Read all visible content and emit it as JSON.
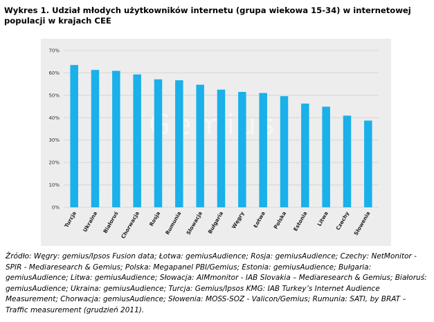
{
  "header": {
    "title": "Wykres 1. Udział młodych użytkowników internetu (grupa wiekowa 15-34) w internetowej populacji w krajach CEE"
  },
  "watermark": {
    "text": "Gemius"
  },
  "colors": {
    "bar": "#1ab0ea",
    "panel": "#ededed",
    "grid": "#d6d6d6"
  },
  "chart_data": {
    "type": "bar",
    "title": "Wykres 1. Udział młodych użytkowników internetu (grupa wiekowa 15-34) w internetowej populacji w krajach CEE",
    "xlabel": "",
    "ylabel": "",
    "ylim": [
      0,
      70
    ],
    "yticks": [
      "0%",
      "10%",
      "20%",
      "30%",
      "40%",
      "50%",
      "60%",
      "70%"
    ],
    "grid": true,
    "categories": [
      "Turcja",
      "Ukraina",
      "Białoruś",
      "Chorwacja",
      "Rosja",
      "Rumunia",
      "Słowacja",
      "Bułgaria",
      "Węgry",
      "Łotwa",
      "Polska",
      "Estonia",
      "Litwa",
      "Czechy",
      "Słowenia"
    ],
    "values": [
      63.5,
      61.3,
      60.9,
      59.3,
      57.1,
      56.7,
      54.7,
      52.5,
      51.5,
      51.0,
      49.6,
      46.3,
      44.9,
      40.9,
      38.7
    ]
  },
  "source": {
    "text": "Źródło: Węgry: gemius/Ipsos Fusion data;  Łotwa: gemiusAudience; Rosja: gemiusAudience; Czechy: NetMonitor - SPIR - Mediaresearch & Gemius; Polska: Megapanel PBI/Gemius; Estonia: gemiusAudience; Bułgaria: gemiusAudience; Litwa: gemiusAudience; Słowacja: AIMmonitor -  IAB Slovakia – Mediaresearch & Gemius; Białoruś: gemiusAudience; Ukraina: gemiusAudience; Turcja: Gemius/Ipsos KMG: IAB Turkey’s Internet Audience Measurement; Chorwacja: gemiusAudience; Słowenia: MOSS-SOZ - Valicon/Gemius; Rumunia: SATI, by BRAT – Traffic measurement (grudzień 2011)."
  }
}
